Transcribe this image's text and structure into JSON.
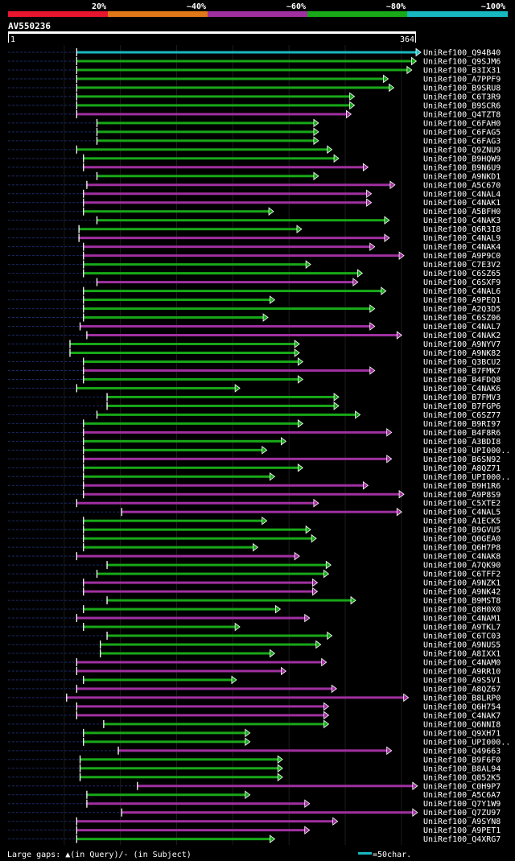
{
  "chart_data": {
    "type": "alignment-overview",
    "query_id": "AV550236",
    "query_length": 364,
    "scale_start_label": "1",
    "scale_end_label": "364",
    "identity_legend": [
      {
        "label": "20%",
        "color": "#e8152e"
      },
      {
        "label": "~40%",
        "color": "#e07818"
      },
      {
        "label": "~60%",
        "color": "#a030a0"
      },
      {
        "label": "~80%",
        "color": "#18a818"
      },
      {
        "label": "~100%",
        "color": "#18b8c0"
      }
    ],
    "hits": [
      {
        "name": "UniRef100_Q94B40",
        "start": 62,
        "end": 364,
        "identity": "~100%"
      },
      {
        "name": "UniRef100_Q9SJM6",
        "start": 62,
        "end": 360,
        "identity": "~80%"
      },
      {
        "name": "UniRef100_B3IX31",
        "start": 62,
        "end": 356,
        "identity": "~80%"
      },
      {
        "name": "UniRef100_A7PPF9",
        "start": 62,
        "end": 335,
        "identity": "~80%"
      },
      {
        "name": "UniRef100_B9SRU8",
        "start": 62,
        "end": 340,
        "identity": "~80%"
      },
      {
        "name": "UniRef100_C6T3R9",
        "start": 62,
        "end": 305,
        "identity": "~80%"
      },
      {
        "name": "UniRef100_B9SCR6",
        "start": 62,
        "end": 305,
        "identity": "~80%"
      },
      {
        "name": "UniRef100_Q4TZT8",
        "start": 62,
        "end": 302,
        "identity": "~60%"
      },
      {
        "name": "UniRef100_C6FAH0",
        "start": 80,
        "end": 273,
        "identity": "~80%"
      },
      {
        "name": "UniRef100_C6FAG5",
        "start": 80,
        "end": 273,
        "identity": "~80%"
      },
      {
        "name": "UniRef100_C6FAG3",
        "start": 80,
        "end": 273,
        "identity": "~80%"
      },
      {
        "name": "UniRef100_Q9ZNU9",
        "start": 62,
        "end": 285,
        "identity": "~80%"
      },
      {
        "name": "UniRef100_B9HQW9",
        "start": 68,
        "end": 291,
        "identity": "~80%"
      },
      {
        "name": "UniRef100_B9N6U9",
        "start": 68,
        "end": 317,
        "identity": "~60%"
      },
      {
        "name": "UniRef100_A9NKD1",
        "start": 80,
        "end": 273,
        "identity": "~80%"
      },
      {
        "name": "UniRef100_A5C670",
        "start": 71,
        "end": 341,
        "identity": "~60%"
      },
      {
        "name": "UniRef100_C4NAL4",
        "start": 68,
        "end": 320,
        "identity": "~60%"
      },
      {
        "name": "UniRef100_C4NAK1",
        "start": 68,
        "end": 320,
        "identity": "~60%"
      },
      {
        "name": "UniRef100_A5BFH0",
        "start": 68,
        "end": 233,
        "identity": "~80%"
      },
      {
        "name": "UniRef100_C4NAK3",
        "start": 80,
        "end": 336,
        "identity": "~80%"
      },
      {
        "name": "UniRef100_Q6R3I8",
        "start": 64,
        "end": 258,
        "identity": "~80%"
      },
      {
        "name": "UniRef100_C4NAL9",
        "start": 64,
        "end": 336,
        "identity": "~60%"
      },
      {
        "name": "UniRef100_C4NAK4",
        "start": 68,
        "end": 323,
        "identity": "~60%"
      },
      {
        "name": "UniRef100_A9P9C0",
        "start": 68,
        "end": 349,
        "identity": "~60%"
      },
      {
        "name": "UniRef100_C7E3V2",
        "start": 68,
        "end": 266,
        "identity": "~80%"
      },
      {
        "name": "UniRef100_C6SZ65",
        "start": 68,
        "end": 312,
        "identity": "~80%"
      },
      {
        "name": "UniRef100_C6SXF9",
        "start": 80,
        "end": 308,
        "identity": "~60%"
      },
      {
        "name": "UniRef100_C4NAL6",
        "start": 68,
        "end": 333,
        "identity": "~80%"
      },
      {
        "name": "UniRef100_A9PEQ1",
        "start": 68,
        "end": 234,
        "identity": "~80%"
      },
      {
        "name": "UniRef100_A2Q3D5",
        "start": 68,
        "end": 323,
        "identity": "~80%"
      },
      {
        "name": "UniRef100_C6SZ06",
        "start": 68,
        "end": 228,
        "identity": "~80%"
      },
      {
        "name": "UniRef100_C4NAL7",
        "start": 65,
        "end": 323,
        "identity": "~60%"
      },
      {
        "name": "UniRef100_C4NAK2",
        "start": 71,
        "end": 347,
        "identity": "~60%"
      },
      {
        "name": "UniRef100_A9NYV7",
        "start": 56,
        "end": 256,
        "identity": "~80%"
      },
      {
        "name": "UniRef100_A9NK82",
        "start": 56,
        "end": 256,
        "identity": "~80%"
      },
      {
        "name": "UniRef100_Q3BCU2",
        "start": 68,
        "end": 259,
        "identity": "~80%"
      },
      {
        "name": "UniRef100_B7FMK7",
        "start": 68,
        "end": 323,
        "identity": "~60%"
      },
      {
        "name": "UniRef100_B4FDQ8",
        "start": 68,
        "end": 259,
        "identity": "~80%"
      },
      {
        "name": "UniRef100_C4NAK6",
        "start": 62,
        "end": 203,
        "identity": "~80%"
      },
      {
        "name": "UniRef100_B7FMV3",
        "start": 89,
        "end": 291,
        "identity": "~80%"
      },
      {
        "name": "UniRef100_B7FGP6",
        "start": 89,
        "end": 291,
        "identity": "~80%"
      },
      {
        "name": "UniRef100_C6SZ77",
        "start": 80,
        "end": 310,
        "identity": "~80%"
      },
      {
        "name": "UniRef100_B9RI97",
        "start": 68,
        "end": 259,
        "identity": "~80%"
      },
      {
        "name": "UniRef100_B4F8R6",
        "start": 68,
        "end": 338,
        "identity": "~60%"
      },
      {
        "name": "UniRef100_A3BDI8",
        "start": 68,
        "end": 244,
        "identity": "~80%"
      },
      {
        "name": "UniRef100_UPI000..",
        "start": 68,
        "end": 227,
        "identity": "~80%"
      },
      {
        "name": "UniRef100_B6SN92",
        "start": 68,
        "end": 338,
        "identity": "~60%"
      },
      {
        "name": "UniRef100_A8QZ71",
        "start": 68,
        "end": 259,
        "identity": "~80%"
      },
      {
        "name": "UniRef100_UPI000..",
        "start": 68,
        "end": 234,
        "identity": "~80%"
      },
      {
        "name": "UniRef100_B9H1R6",
        "start": 68,
        "end": 317,
        "identity": "~60%"
      },
      {
        "name": "UniRef100_A9P8S9",
        "start": 68,
        "end": 349,
        "identity": "~60%"
      },
      {
        "name": "UniRef100_C5XTE2",
        "start": 62,
        "end": 273,
        "identity": "~60%"
      },
      {
        "name": "UniRef100_C4NAL5",
        "start": 102,
        "end": 347,
        "identity": "~60%"
      },
      {
        "name": "UniRef100_A1ECK5",
        "start": 68,
        "end": 227,
        "identity": "~80%"
      },
      {
        "name": "UniRef100_B9GVU5",
        "start": 68,
        "end": 266,
        "identity": "~80%"
      },
      {
        "name": "UniRef100_Q0GEA0",
        "start": 68,
        "end": 271,
        "identity": "~80%"
      },
      {
        "name": "UniRef100_Q6H7P8",
        "start": 68,
        "end": 219,
        "identity": "~80%"
      },
      {
        "name": "UniRef100_C4NAK8",
        "start": 62,
        "end": 256,
        "identity": "~60%"
      },
      {
        "name": "UniRef100_A7QK90",
        "start": 89,
        "end": 284,
        "identity": "~80%"
      },
      {
        "name": "UniRef100_C6TFF2",
        "start": 80,
        "end": 282,
        "identity": "~80%"
      },
      {
        "name": "UniRef100_A9NZK1",
        "start": 68,
        "end": 272,
        "identity": "~60%"
      },
      {
        "name": "UniRef100_A9NK42",
        "start": 68,
        "end": 272,
        "identity": "~60%"
      },
      {
        "name": "UniRef100_B9MST8",
        "start": 89,
        "end": 306,
        "identity": "~80%"
      },
      {
        "name": "UniRef100_Q8H0X0",
        "start": 68,
        "end": 239,
        "identity": "~80%"
      },
      {
        "name": "UniRef100_C4NAM1",
        "start": 62,
        "end": 265,
        "identity": "~60%"
      },
      {
        "name": "UniRef100_A9TKL7",
        "start": 68,
        "end": 203,
        "identity": "~80%"
      },
      {
        "name": "UniRef100_C6TC03",
        "start": 89,
        "end": 285,
        "identity": "~80%"
      },
      {
        "name": "UniRef100_A9NUS5",
        "start": 83,
        "end": 275,
        "identity": "~80%"
      },
      {
        "name": "UniRef100_A8IXX1",
        "start": 83,
        "end": 234,
        "identity": "~80%"
      },
      {
        "name": "UniRef100_C4NAM0",
        "start": 62,
        "end": 280,
        "identity": "~60%"
      },
      {
        "name": "UniRef100_A9RR10",
        "start": 62,
        "end": 244,
        "identity": "~60%"
      },
      {
        "name": "UniRef100_A9S5V1",
        "start": 68,
        "end": 200,
        "identity": "~80%"
      },
      {
        "name": "UniRef100_A8QZ67",
        "start": 62,
        "end": 289,
        "identity": "~60%"
      },
      {
        "name": "UniRef100_B8LRP0",
        "start": 53,
        "end": 353,
        "identity": "~60%"
      },
      {
        "name": "UniRef100_Q6H754",
        "start": 62,
        "end": 282,
        "identity": "~60%"
      },
      {
        "name": "UniRef100_C4NAK7",
        "start": 62,
        "end": 282,
        "identity": "~60%"
      },
      {
        "name": "UniRef100_Q6NNI8",
        "start": 86,
        "end": 282,
        "identity": "~80%"
      },
      {
        "name": "UniRef100_Q9XH71",
        "start": 68,
        "end": 212,
        "identity": "~80%"
      },
      {
        "name": "UniRef100_UPI000..",
        "start": 68,
        "end": 212,
        "identity": "~80%"
      },
      {
        "name": "UniRef100_Q49663",
        "start": 99,
        "end": 338,
        "identity": "~60%"
      },
      {
        "name": "UniRef100_B9F6F0",
        "start": 65,
        "end": 241,
        "identity": "~80%"
      },
      {
        "name": "UniRef100_B8AL94",
        "start": 65,
        "end": 241,
        "identity": "~80%"
      },
      {
        "name": "UniRef100_Q852K5",
        "start": 65,
        "end": 241,
        "identity": "~80%"
      },
      {
        "name": "UniRef100_C0H9P7",
        "start": 116,
        "end": 361,
        "identity": "~60%"
      },
      {
        "name": "UniRef100_A5C6A7",
        "start": 71,
        "end": 212,
        "identity": "~80%"
      },
      {
        "name": "UniRef100_Q7Y1W9",
        "start": 71,
        "end": 265,
        "identity": "~60%"
      },
      {
        "name": "UniRef100_Q7ZU97",
        "start": 102,
        "end": 361,
        "identity": "~60%"
      },
      {
        "name": "UniRef100_A9SYN8",
        "start": 62,
        "end": 290,
        "identity": "~60%"
      },
      {
        "name": "UniRef100_A9PET1",
        "start": 62,
        "end": 265,
        "identity": "~60%"
      },
      {
        "name": "UniRef100_Q4XRG7",
        "start": 62,
        "end": 234,
        "identity": "~80%"
      }
    ],
    "legend_footer": {
      "gaps_text": "Large gaps: ▲(in Query)/- (in Subject)",
      "scale_text": "=50char.",
      "scale_color": "#18b8c0",
      "scale_chars": 50
    }
  }
}
